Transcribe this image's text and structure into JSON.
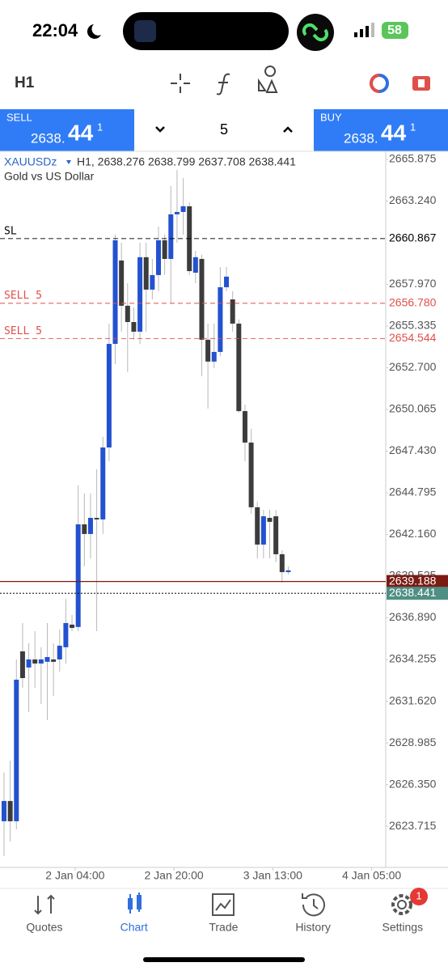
{
  "status_bar": {
    "time": "22:04",
    "battery": "58"
  },
  "toolbar": {
    "timeframe": "H1"
  },
  "trade_panel": {
    "sell": {
      "label": "SELL",
      "price_main": "2638.",
      "price_big": "44",
      "price_sup": "1"
    },
    "volume": "5",
    "buy": {
      "label": "BUY",
      "price_main": "2638.",
      "price_big": "44",
      "price_sup": "1"
    }
  },
  "chart_data": {
    "type": "candlestick",
    "title": "XAUUSDz",
    "info": "H1, 2638.276 2638.799 2637.708 2638.441",
    "subtitle": "Gold vs US Dollar",
    "up_color": "#2352d0",
    "down_color": "#3c3c3c",
    "wick_color": "#b8b8b8",
    "open": [
      2624.03,
      2625.31,
      2624.03,
      2634.77,
      2633.75,
      2634.26,
      2634.0,
      2634.11,
      2634.26,
      2634.26,
      2635.03,
      2636.46,
      2636.31,
      2642.8,
      2642.19,
      2643.21,
      2643.11,
      2647.66,
      2654.21,
      2659.48,
      2656.62,
      2655.59,
      2654.98,
      2659.69,
      2657.64,
      2658.56,
      2660.76,
      2659.58,
      2662.4,
      2662.55,
      2662.91,
      2658.71,
      2659.58,
      2654.47,
      2653.09,
      2653.7,
      2657.79,
      2657.02,
      2655.49,
      2649.96,
      2647.97,
      2643.88,
      2641.52,
      2643.21,
      2643.31,
      2640.91,
      2639.78
    ],
    "high": [
      2627.1,
      2627.86,
      2634.26,
      2636.56,
      2635.28,
      2636.05,
      2635.03,
      2636.56,
      2635.28,
      2636.15,
      2638.1,
      2637.07,
      2645.26,
      2644.75,
      2644.75,
      2646.28,
      2648.33,
      2655.49,
      2661.12,
      2660.61,
      2658.05,
      2656.51,
      2660.61,
      2660.61,
      2659.58,
      2661.63,
      2661.12,
      2664.19,
      2665.21,
      2664.7,
      2663.17,
      2660.09,
      2659.84,
      2655.49,
      2655.49,
      2659.07,
      2659.07,
      2657.54,
      2655.75,
      2650.37,
      2648.84,
      2644.24,
      2643.72,
      2643.72,
      2643.72,
      2641.16,
      2640.14
    ],
    "low": [
      2621.83,
      2622.75,
      2623.51,
      2632.47,
      2630.93,
      2632.47,
      2631.45,
      2630.42,
      2631.96,
      2633.49,
      2634.0,
      2636.05,
      2636.05,
      2640.14,
      2640.65,
      2636.05,
      2642.19,
      2646.79,
      2652.93,
      2654.98,
      2652.42,
      2654.47,
      2654.21,
      2654.98,
      2657.02,
      2657.54,
      2658.56,
      2656.77,
      2660.61,
      2661.12,
      2658.56,
      2658.05,
      2652.16,
      2650.12,
      2652.68,
      2653.44,
      2657.54,
      2654.98,
      2649.86,
      2646.79,
      2643.47,
      2640.65,
      2640.65,
      2640.65,
      2640.4,
      2639.12,
      2639.63
    ],
    "close": [
      2625.31,
      2624.03,
      2632.98,
      2633.08,
      2634.26,
      2634.0,
      2634.26,
      2634.41,
      2634.11,
      2635.13,
      2636.56,
      2636.25,
      2642.8,
      2642.19,
      2643.21,
      2643.11,
      2647.66,
      2654.21,
      2660.76,
      2656.62,
      2655.59,
      2654.98,
      2659.69,
      2657.64,
      2658.56,
      2660.76,
      2659.58,
      2662.4,
      2662.55,
      2662.91,
      2658.81,
      2659.69,
      2654.47,
      2653.09,
      2653.7,
      2657.79,
      2658.46,
      2655.49,
      2649.96,
      2647.97,
      2643.88,
      2641.52,
      2643.31,
      2642.96,
      2640.91,
      2639.78,
      2639.89
    ],
    "ylim": [
      2621.11,
      2666.23
    ],
    "yticks": [
      {
        "value": 2665.875,
        "label": "2665.875"
      },
      {
        "value": 2663.24,
        "label": "2663.240"
      },
      {
        "value": 2657.97,
        "label": "2657.970"
      },
      {
        "value": 2655.335,
        "label": "2655.335"
      },
      {
        "value": 2652.7,
        "label": "2652.700"
      },
      {
        "value": 2650.065,
        "label": "2650.065"
      },
      {
        "value": 2647.43,
        "label": "2647.430"
      },
      {
        "value": 2644.795,
        "label": "2644.795"
      },
      {
        "value": 2642.16,
        "label": "2642.160"
      },
      {
        "value": 2639.525,
        "label": "2639.525"
      },
      {
        "value": 2636.89,
        "label": "2636.890"
      },
      {
        "value": 2634.255,
        "label": "2634.255"
      },
      {
        "value": 2631.62,
        "label": "2631.620"
      },
      {
        "value": 2628.985,
        "label": "2628.985"
      },
      {
        "value": 2626.35,
        "label": "2626.350"
      },
      {
        "value": 2623.715,
        "label": "2623.715"
      }
    ],
    "xticks": [
      {
        "value": 11.5,
        "label": "2 Jan 04:00"
      },
      {
        "value": 27.5,
        "label": "2 Jan 20:00"
      },
      {
        "value": 43.5,
        "label": "3 Jan 13:00"
      },
      {
        "value": 59.5,
        "label": "4 Jan 05:00"
      }
    ],
    "levels": [
      {
        "name": "SL",
        "value": 2660.867,
        "value_label": "2660.867",
        "color": "#000000",
        "dash": "6 4",
        "filled": false
      },
      {
        "name": "SELL 5",
        "value": 2656.78,
        "value_label": "2656.780",
        "color": "#e0504a",
        "dash": "6 4",
        "filled": false
      },
      {
        "name": "SELL 5",
        "value": 2654.544,
        "value_label": "2654.544",
        "color": "#e0504a",
        "dash": "6 4",
        "filled": false
      },
      {
        "value": 2639.188,
        "value_label": "2639.188",
        "color": "#7a1c14",
        "dash": "none",
        "filled": true
      },
      {
        "value": 2638.441,
        "value_label": "2638.441",
        "color": "#000000",
        "box_color": "#4f8f84",
        "dash": "2 2",
        "filled": true
      }
    ]
  },
  "nav": {
    "items": [
      "Quotes",
      "Chart",
      "Trade",
      "History",
      "Settings"
    ],
    "badge": "1"
  }
}
